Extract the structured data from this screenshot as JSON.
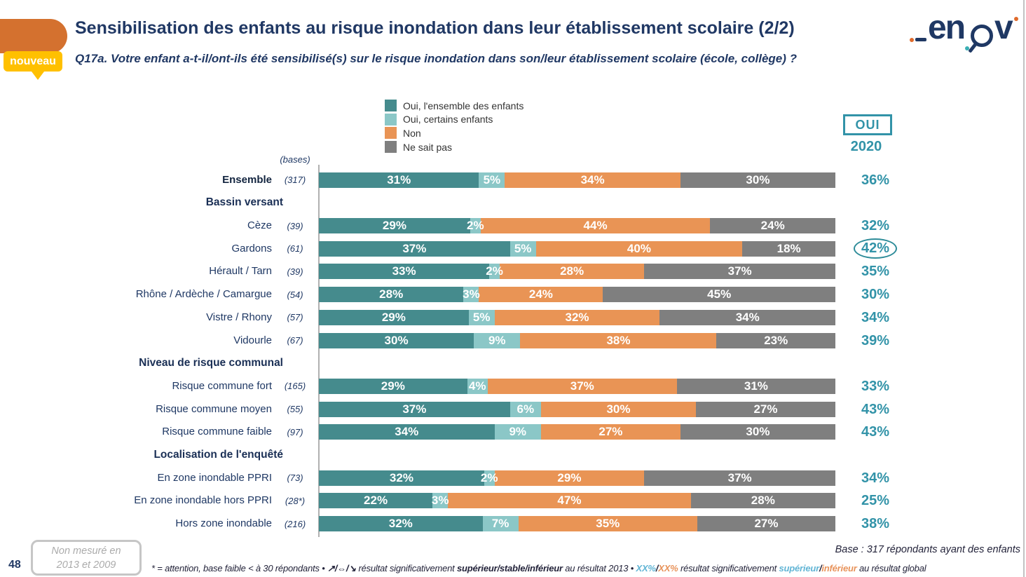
{
  "header": {
    "title": "Sensibilisation des enfants au risque inondation dans leur établissement scolaire (2/2)",
    "badge": "nouveau",
    "question": "Q17a. Votre enfant a-t-il/ont-ils été sensibilisé(s) sur le risque inondation dans son/leur établissement scolaire (école, collège) ?",
    "logo_text_left": "en",
    "logo_text_right": "v"
  },
  "colors": {
    "series": [
      "#458B8D",
      "#8BC7C7",
      "#E99455",
      "#7F7F7F"
    ],
    "accent_teal": "#3293A8",
    "navy": "#203864",
    "badge_yellow": "#FFC000",
    "header_orange": "#D4712F",
    "footnote_superieur": "#62B5D5",
    "footnote_inferieur": "#E8935B"
  },
  "legend": {
    "items": [
      "Oui, l'ensemble des enfants",
      "Oui, certains enfants",
      "Non",
      "Ne sait pas"
    ]
  },
  "oui_column": {
    "box_label": "OUI",
    "year": "2020"
  },
  "chart_data": {
    "type": "bar",
    "orientation": "horizontal",
    "stacked": true,
    "unit": "%",
    "bases_label": "(bases)",
    "series_names": [
      "Oui, l'ensemble des enfants",
      "Oui, certains enfants",
      "Non",
      "Ne sait pas"
    ],
    "oui_header": "OUI 2020",
    "rows": [
      {
        "kind": "row",
        "label": "Ensemble",
        "base": "(317)",
        "values": [
          31,
          5,
          34,
          30
        ],
        "oui": "36%",
        "bold": true
      },
      {
        "kind": "section",
        "label": "Bassin versant"
      },
      {
        "kind": "row",
        "label": "Cèze",
        "base": "(39)",
        "values": [
          29,
          2,
          44,
          24
        ],
        "oui": "32%"
      },
      {
        "kind": "row",
        "label": "Gardons",
        "base": "(61)",
        "values": [
          37,
          5,
          40,
          18
        ],
        "oui": "42%",
        "circled": true
      },
      {
        "kind": "row",
        "label": "Hérault / Tarn",
        "base": "(39)",
        "values": [
          33,
          2,
          28,
          37
        ],
        "oui": "35%"
      },
      {
        "kind": "row",
        "label": "Rhône / Ardèche / Camargue",
        "base": "(54)",
        "values": [
          28,
          3,
          24,
          45
        ],
        "oui": "30%"
      },
      {
        "kind": "row",
        "label": "Vistre / Rhony",
        "base": "(57)",
        "values": [
          29,
          5,
          32,
          34
        ],
        "oui": "34%"
      },
      {
        "kind": "row",
        "label": "Vidourle",
        "base": "(67)",
        "values": [
          30,
          9,
          38,
          23
        ],
        "oui": "39%"
      },
      {
        "kind": "section",
        "label": "Niveau de risque communal"
      },
      {
        "kind": "row",
        "label": "Risque commune fort",
        "base": "(165)",
        "values": [
          29,
          4,
          37,
          31
        ],
        "oui": "33%"
      },
      {
        "kind": "row",
        "label": "Risque commune moyen",
        "base": "(55)",
        "values": [
          37,
          6,
          30,
          27
        ],
        "oui": "43%"
      },
      {
        "kind": "row",
        "label": "Risque commune faible",
        "base": "(97)",
        "values": [
          34,
          9,
          27,
          30
        ],
        "oui": "43%"
      },
      {
        "kind": "section",
        "label": "Localisation de l'enquêté"
      },
      {
        "kind": "row",
        "label": "En zone inondable PPRI",
        "base": "(73)",
        "values": [
          32,
          2,
          29,
          37
        ],
        "oui": "34%"
      },
      {
        "kind": "row",
        "label": "En zone inondable hors PPRI",
        "base": "(28*)",
        "values": [
          22,
          3,
          47,
          28
        ],
        "oui": "25%"
      },
      {
        "kind": "row",
        "label": "Hors zone inondable",
        "base": "(216)",
        "values": [
          32,
          7,
          35,
          27
        ],
        "oui": "38%"
      }
    ]
  },
  "footer": {
    "page_number": "48",
    "note_box": [
      "Non mesuré en",
      "2013 et 2009"
    ],
    "base_note": "Base : 317 répondants ayant des enfants",
    "footnote": {
      "part1": "* = attention, base faible < à 30 répondants • ",
      "arrows": "↗/⇔/↘",
      "part2": " résultat significativement ",
      "bold1": "supérieur/stable/inférieur",
      "part3": " au résultat 2013 • ",
      "xx_sup": "XX%",
      "slash1": "/",
      "xx_inf": "XX%",
      "part4": " résultat significativement ",
      "sup_word": "supérieur",
      "slash2": "/",
      "inf_word": "inférieur",
      "part5": " au résultat global"
    }
  }
}
